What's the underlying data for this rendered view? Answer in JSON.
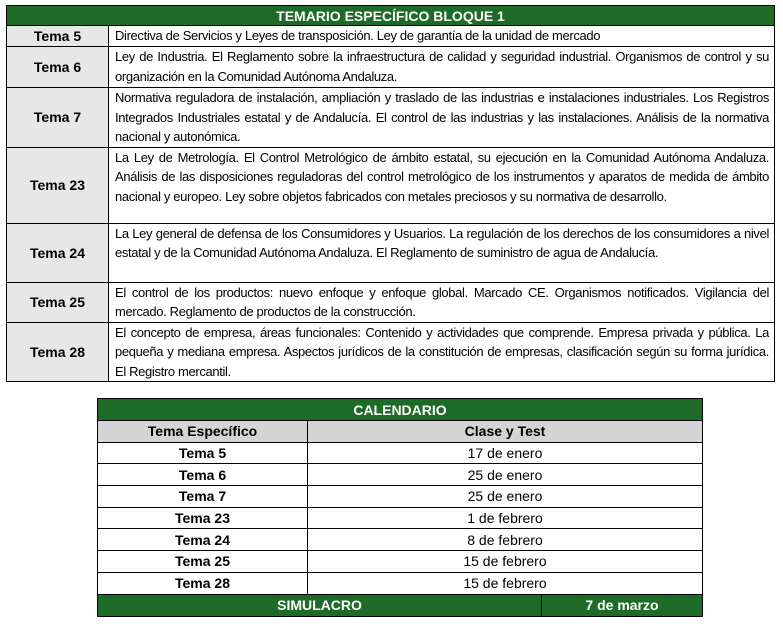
{
  "temario": {
    "title": "TEMARIO ESPECÍFICO BLOQUE 1",
    "rows": [
      {
        "tema": "Tema 5",
        "desc": "Directiva de Servicios y Leyes de transposición. Ley de garantía de la unidad de mercado"
      },
      {
        "tema": "Tema 6",
        "desc": "Ley de Industria. El Reglamento sobre la infraestructura de calidad y seguridad industrial. Organismos de control y su organización en la Comunidad Autónoma Andaluza."
      },
      {
        "tema": "Tema 7",
        "desc": "Normativa reguladora de instalación, ampliación y traslado de las industrias e instalaciones industriales. Los Registros Integrados Industriales estatal y de Andalucía. El control de las industrias y las instalaciones. Análisis de la normativa nacional y autonómica."
      },
      {
        "tema": "Tema 23",
        "desc": "La Ley de Metrología. El Control Metrológico de ámbito estatal, su ejecución en la Comunidad Autónoma Andaluza. Análisis de las disposiciones reguladoras del control metrológico de los instrumentos y aparatos de medida de ámbito nacional y europeo. Ley sobre objetos fabricados con metales preciosos y su normativa de desarrollo."
      },
      {
        "tema": "Tema 24",
        "desc": "La Ley general de defensa de los Consumidores y Usuarios. La regulación de los derechos de los consumidores a nivel estatal y de la Comunidad Autónoma Andaluza. El Reglamento de suministro de agua de Andalucía."
      },
      {
        "tema": "Tema 25",
        "desc": "El control de los productos: nuevo enfoque y enfoque global. Marcado CE. Organismos notificados. Vigilancia del mercado. Reglamento de productos de la construcción."
      },
      {
        "tema": "Tema 28",
        "desc": "El concepto de empresa, áreas funcionales: Contenido y actividades que comprende. Empresa privada y pública. La pequeña y mediana empresa. Aspectos jurídicos de la constitución de empresas, clasificación según su forma jurídica. El Registro mercantil."
      }
    ]
  },
  "calendario": {
    "title": "CALENDARIO",
    "col_tema": "Tema Específico",
    "col_fecha": "Clase y Test",
    "rows": [
      {
        "tema": "Tema 5",
        "fecha": "17 de enero"
      },
      {
        "tema": "Tema 6",
        "fecha": "25 de enero"
      },
      {
        "tema": "Tema 7",
        "fecha": "25 de enero"
      },
      {
        "tema": "Tema 23",
        "fecha": "1 de febrero"
      },
      {
        "tema": "Tema 24",
        "fecha": "8 de febrero"
      },
      {
        "tema": "Tema 25",
        "fecha": "15 de febrero"
      },
      {
        "tema": "Tema 28",
        "fecha": "15 de febrero"
      }
    ],
    "simulacro_label": "SIMULACRO",
    "simulacro_fecha": "7 de marzo"
  },
  "colors": {
    "header_green": "#1e6b28",
    "tema_gray": "#e7e7e7",
    "subheader_gray": "#d4d4d4"
  }
}
